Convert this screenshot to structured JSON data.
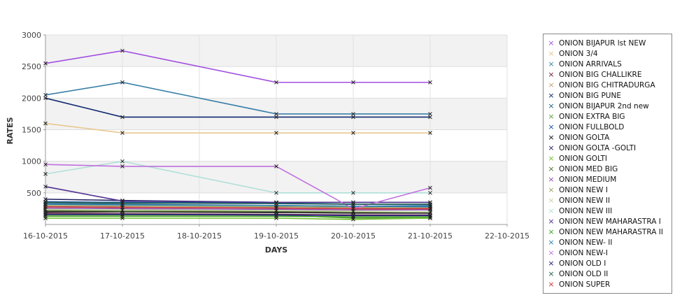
{
  "chart_data": {
    "type": "line",
    "xlabel": "DAYS",
    "ylabel": "RATES",
    "ylim": [
      0,
      3000
    ],
    "yticks": [
      500,
      1000,
      1500,
      2000,
      2500,
      3000
    ],
    "x_ticks": [
      "16-10-2015",
      "17-10-2015",
      "18-10-2015",
      "19-10-2015",
      "20-10-2015",
      "21-10-2015",
      "22-10-2015"
    ],
    "x": [
      "16-10-2015",
      "17-10-2015",
      "19-10-2015",
      "20-10-2015",
      "21-10-2015"
    ],
    "grid": "horizontal bands",
    "legend_position": "right",
    "series": [
      {
        "name": "ONION BIJAPUR lst NEW",
        "color": "#a050e0",
        "values": [
          2550,
          2750,
          2250,
          2250,
          2250
        ]
      },
      {
        "name": "ONION 3/4",
        "color": "#e8c890",
        "values": [
          1600,
          1450,
          1450,
          1450,
          1450
        ]
      },
      {
        "name": "ONION ARRIVALS",
        "color": "#3a80a8",
        "values": [
          2050,
          2250,
          1750,
          1750,
          1750
        ]
      },
      {
        "name": "ONION BIG CHALLIKRE",
        "color": "#702040",
        "values": [
          180,
          170,
          160,
          150,
          150
        ]
      },
      {
        "name": "ONION BIG CHITRADURGA",
        "color": "#c8a070",
        "values": [
          280,
          270,
          260,
          250,
          240
        ]
      },
      {
        "name": "ONION BIG PUNE",
        "color": "#102a70",
        "values": [
          2000,
          1700,
          1700,
          1700,
          1700
        ]
      },
      {
        "name": "ONION BIJAPUR 2nd new",
        "color": "#206080",
        "values": [
          330,
          320,
          300,
          290,
          280
        ]
      },
      {
        "name": "ONION EXTRA BIG",
        "color": "#60a040",
        "values": [
          150,
          150,
          150,
          100,
          100
        ]
      },
      {
        "name": "ONION FULLBOLD",
        "color": "#1050a0",
        "values": [
          360,
          350,
          340,
          320,
          310
        ]
      },
      {
        "name": "ONION GOLTA",
        "color": "#101010",
        "values": [
          200,
          200,
          190,
          180,
          180
        ]
      },
      {
        "name": "ONION GOLTA -GOLTI",
        "color": "#202060",
        "values": [
          400,
          380,
          350,
          350,
          350
        ]
      },
      {
        "name": "ONION GOLTI",
        "color": "#70c030",
        "values": [
          100,
          100,
          100,
          80,
          100
        ]
      },
      {
        "name": "ONION MED BIG",
        "color": "#507030",
        "values": [
          220,
          210,
          210,
          200,
          200
        ]
      },
      {
        "name": "ONION MEDIUM",
        "color": "#9050b0",
        "values": [
          260,
          250,
          240,
          230,
          230
        ]
      },
      {
        "name": "ONION NEW I",
        "color": "#a0a060",
        "values": [
          300,
          290,
          280,
          270,
          260
        ]
      },
      {
        "name": "ONION NEW II",
        "color": "#c0d8a0",
        "values": [
          240,
          230,
          220,
          210,
          200
        ]
      },
      {
        "name": "ONION NEW III",
        "color": "#b0e0d8",
        "values": [
          800,
          1000,
          500,
          500,
          500
        ]
      },
      {
        "name": "ONION NEW MAHARASTRA I",
        "color": "#503090",
        "values": [
          600,
          370,
          350,
          350,
          350
        ]
      },
      {
        "name": "ONION NEW MAHARASTRA II",
        "color": "#40a020",
        "values": [
          130,
          130,
          130,
          120,
          120
        ]
      },
      {
        "name": "ONION NEW- II",
        "color": "#3080b0",
        "values": [
          320,
          310,
          300,
          290,
          290
        ]
      },
      {
        "name": "ONION NEW-I",
        "color": "#c070e0",
        "values": [
          950,
          920,
          920,
          250,
          580
        ]
      },
      {
        "name": "ONION OLD I",
        "color": "#202080",
        "values": [
          160,
          160,
          150,
          140,
          140
        ]
      },
      {
        "name": "ONION OLD II",
        "color": "#206050",
        "values": [
          350,
          340,
          330,
          320,
          320
        ]
      },
      {
        "name": "ONION SUPER",
        "color": "#d03040",
        "values": [
          280,
          270,
          260,
          250,
          250
        ]
      }
    ]
  }
}
